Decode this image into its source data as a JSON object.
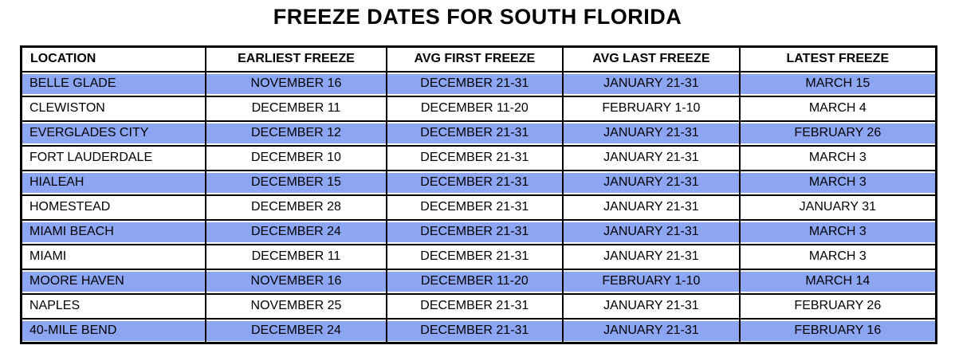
{
  "title": "FREEZE DATES FOR SOUTH FLORIDA",
  "colors": {
    "row_highlight": "#8DA6F4",
    "border": "#000000",
    "header_background": "#FFFFFF",
    "text": "#000000",
    "page_background": "#FFFFFF"
  },
  "table": {
    "columns": [
      "LOCATION",
      "EARLIEST FREEZE",
      "AVG FIRST FREEZE",
      "AVG LAST FREEZE",
      "LATEST FREEZE"
    ],
    "rows": [
      {
        "highlighted": true,
        "cells": [
          "BELLE GLADE",
          "NOVEMBER 16",
          "DECEMBER 21-31",
          "JANUARY 21-31",
          "MARCH 15"
        ]
      },
      {
        "highlighted": false,
        "cells": [
          "CLEWISTON",
          "DECEMBER 11",
          "DECEMBER 11-20",
          "FEBRUARY 1-10",
          "MARCH 4"
        ]
      },
      {
        "highlighted": true,
        "cells": [
          "EVERGLADES CITY",
          "DECEMBER 12",
          "DECEMBER 21-31",
          "JANUARY 21-31",
          "FEBRUARY 26"
        ]
      },
      {
        "highlighted": false,
        "cells": [
          "FORT LAUDERDALE",
          "DECEMBER 10",
          "DECEMBER 21-31",
          "JANUARY 21-31",
          "MARCH 3"
        ]
      },
      {
        "highlighted": true,
        "cells": [
          "HIALEAH",
          "DECEMBER 15",
          "DECEMBER 21-31",
          "JANUARY 21-31",
          "MARCH 3"
        ]
      },
      {
        "highlighted": false,
        "cells": [
          "HOMESTEAD",
          "DECEMBER 28",
          "DECEMBER 21-31",
          "JANUARY 21-31",
          "JANUARY 31"
        ]
      },
      {
        "highlighted": true,
        "cells": [
          "MIAMI BEACH",
          "DECEMBER 24",
          "DECEMBER 21-31",
          "JANUARY 21-31",
          "MARCH 3"
        ]
      },
      {
        "highlighted": false,
        "cells": [
          "MIAMI",
          "DECEMBER 11",
          "DECEMBER 21-31",
          "JANUARY 21-31",
          "MARCH 3"
        ]
      },
      {
        "highlighted": true,
        "cells": [
          "MOORE HAVEN",
          "NOVEMBER 16",
          "DECEMBER 11-20",
          "FEBRUARY 1-10",
          "MARCH 14"
        ]
      },
      {
        "highlighted": false,
        "cells": [
          "NAPLES",
          "NOVEMBER 25",
          "DECEMBER 21-31",
          "JANUARY 21-31",
          "FEBRUARY 26"
        ]
      },
      {
        "highlighted": true,
        "cells": [
          "40-MILE BEND",
          "DECEMBER 24",
          "DECEMBER 21-31",
          "JANUARY 21-31",
          "FEBRUARY 16"
        ]
      }
    ]
  },
  "chart_data": {
    "type": "table",
    "title": "FREEZE DATES FOR SOUTH FLORIDA",
    "columns": [
      "LOCATION",
      "EARLIEST FREEZE",
      "AVG FIRST FREEZE",
      "AVG LAST FREEZE",
      "LATEST FREEZE"
    ],
    "rows": [
      [
        "BELLE GLADE",
        "NOVEMBER 16",
        "DECEMBER 21-31",
        "JANUARY 21-31",
        "MARCH 15"
      ],
      [
        "CLEWISTON",
        "DECEMBER 11",
        "DECEMBER 11-20",
        "FEBRUARY 1-10",
        "MARCH 4"
      ],
      [
        "EVERGLADES CITY",
        "DECEMBER 12",
        "DECEMBER 21-31",
        "JANUARY 21-31",
        "FEBRUARY 26"
      ],
      [
        "FORT LAUDERDALE",
        "DECEMBER 10",
        "DECEMBER 21-31",
        "JANUARY 21-31",
        "MARCH 3"
      ],
      [
        "HIALEAH",
        "DECEMBER 15",
        "DECEMBER 21-31",
        "JANUARY 21-31",
        "MARCH 3"
      ],
      [
        "HOMESTEAD",
        "DECEMBER 28",
        "DECEMBER 21-31",
        "JANUARY 21-31",
        "JANUARY 31"
      ],
      [
        "MIAMI BEACH",
        "DECEMBER 24",
        "DECEMBER 21-31",
        "JANUARY 21-31",
        "MARCH 3"
      ],
      [
        "MIAMI",
        "DECEMBER 11",
        "DECEMBER 21-31",
        "JANUARY 21-31",
        "MARCH 3"
      ],
      [
        "MOORE HAVEN",
        "NOVEMBER 16",
        "DECEMBER 11-20",
        "FEBRUARY 1-10",
        "MARCH 14"
      ],
      [
        "NAPLES",
        "NOVEMBER 25",
        "DECEMBER 21-31",
        "JANUARY 21-31",
        "FEBRUARY 26"
      ],
      [
        "40-MILE BEND",
        "DECEMBER 24",
        "DECEMBER 21-31",
        "JANUARY 21-31",
        "FEBRUARY 16"
      ]
    ]
  }
}
